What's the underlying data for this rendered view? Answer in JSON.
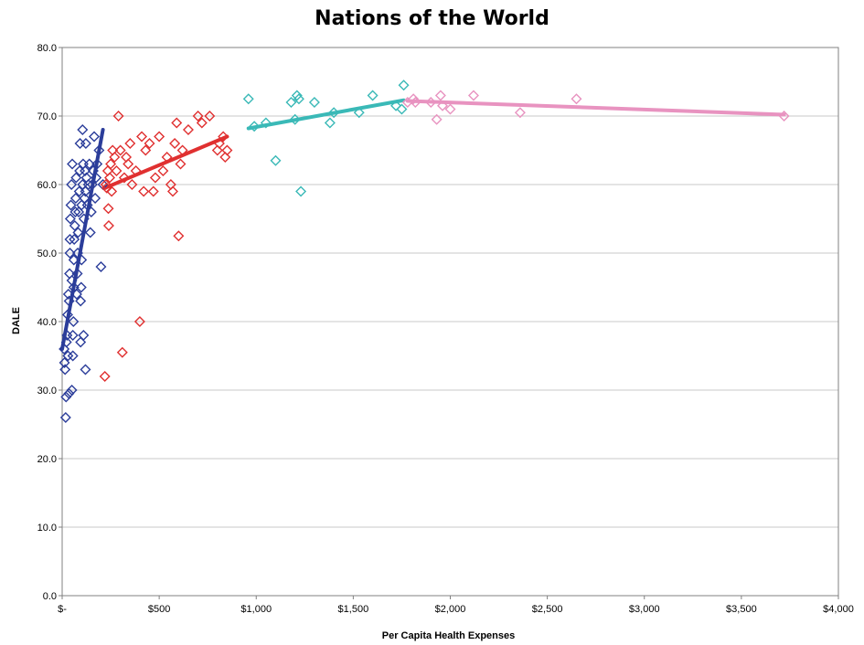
{
  "chart_data": {
    "type": "scatter",
    "title": "Nations of the World",
    "xlabel": "Per Capita Health Expenses",
    "ylabel": "DALE",
    "xlim": [
      0,
      4000
    ],
    "ylim": [
      0,
      80
    ],
    "x_ticks": [
      0,
      500,
      1000,
      1500,
      2000,
      2500,
      3000,
      3500,
      4000
    ],
    "x_tick_labels": [
      "$-",
      "$500",
      "$1,000",
      "$1,500",
      "$2,000",
      "$2,500",
      "$3,000",
      "$3,500",
      "$4,000"
    ],
    "y_ticks": [
      0,
      10,
      20,
      30,
      40,
      50,
      60,
      70,
      80
    ],
    "y_tick_labels": [
      "0.0",
      "10.0",
      "20.0",
      "30.0",
      "40.0",
      "50.0",
      "60.0",
      "70.0",
      "80.0"
    ],
    "grid": "horizontal",
    "legend": "none",
    "series": [
      {
        "color": "#2b3d9a",
        "marker": "diamond",
        "points": [
          [
            10,
            36
          ],
          [
            12,
            34
          ],
          [
            15,
            33
          ],
          [
            18,
            26
          ],
          [
            20,
            29
          ],
          [
            22,
            37
          ],
          [
            25,
            38
          ],
          [
            28,
            41
          ],
          [
            30,
            35
          ],
          [
            32,
            44
          ],
          [
            35,
            29.5
          ],
          [
            36,
            43
          ],
          [
            38,
            47
          ],
          [
            40,
            50
          ],
          [
            40,
            52
          ],
          [
            42,
            55
          ],
          [
            45,
            57
          ],
          [
            48,
            60
          ],
          [
            50,
            46
          ],
          [
            50,
            30
          ],
          [
            52,
            63
          ],
          [
            55,
            35
          ],
          [
            55,
            38
          ],
          [
            58,
            40
          ],
          [
            60,
            45
          ],
          [
            60,
            49
          ],
          [
            62,
            52
          ],
          [
            65,
            54
          ],
          [
            68,
            56
          ],
          [
            70,
            58
          ],
          [
            72,
            61
          ],
          [
            75,
            44
          ],
          [
            78,
            47
          ],
          [
            80,
            50
          ],
          [
            82,
            53
          ],
          [
            85,
            56
          ],
          [
            88,
            59
          ],
          [
            90,
            62
          ],
          [
            92,
            66
          ],
          [
            95,
            37
          ],
          [
            95,
            43
          ],
          [
            98,
            45
          ],
          [
            100,
            49
          ],
          [
            100,
            57
          ],
          [
            105,
            60
          ],
          [
            105,
            68
          ],
          [
            108,
            63
          ],
          [
            110,
            38
          ],
          [
            112,
            55
          ],
          [
            115,
            58
          ],
          [
            118,
            62
          ],
          [
            120,
            33
          ],
          [
            120,
            59
          ],
          [
            122,
            66
          ],
          [
            125,
            61
          ],
          [
            130,
            57
          ],
          [
            135,
            60
          ],
          [
            140,
            63
          ],
          [
            145,
            53
          ],
          [
            150,
            56
          ],
          [
            155,
            60
          ],
          [
            160,
            62
          ],
          [
            165,
            67
          ],
          [
            170,
            58
          ],
          [
            175,
            61
          ],
          [
            180,
            63
          ],
          [
            190,
            65
          ],
          [
            200,
            48
          ],
          [
            210,
            60
          ]
        ],
        "fit_line": [
          [
            0,
            36
          ],
          [
            210,
            68
          ]
        ]
      },
      {
        "color": "#e03030",
        "marker": "diamond",
        "points": [
          [
            220,
            32
          ],
          [
            225,
            60
          ],
          [
            230,
            59.5
          ],
          [
            235,
            62
          ],
          [
            238,
            56.5
          ],
          [
            240,
            54
          ],
          [
            245,
            61
          ],
          [
            250,
            63
          ],
          [
            255,
            59
          ],
          [
            260,
            65
          ],
          [
            270,
            64
          ],
          [
            280,
            62
          ],
          [
            290,
            70
          ],
          [
            300,
            65
          ],
          [
            310,
            35.5
          ],
          [
            320,
            61
          ],
          [
            330,
            64
          ],
          [
            340,
            63
          ],
          [
            350,
            66
          ],
          [
            360,
            60
          ],
          [
            380,
            62
          ],
          [
            400,
            40
          ],
          [
            410,
            67
          ],
          [
            420,
            59
          ],
          [
            430,
            65
          ],
          [
            450,
            66
          ],
          [
            470,
            59
          ],
          [
            480,
            61
          ],
          [
            500,
            67
          ],
          [
            520,
            62
          ],
          [
            540,
            64
          ],
          [
            560,
            60
          ],
          [
            570,
            59
          ],
          [
            580,
            66
          ],
          [
            590,
            69
          ],
          [
            600,
            52.5
          ],
          [
            610,
            63
          ],
          [
            620,
            65
          ],
          [
            650,
            68
          ],
          [
            700,
            70
          ],
          [
            720,
            69
          ],
          [
            760,
            70
          ],
          [
            800,
            65
          ],
          [
            810,
            66
          ],
          [
            830,
            67
          ],
          [
            840,
            64
          ],
          [
            850,
            65
          ]
        ],
        "fit_line": [
          [
            220,
            59.5
          ],
          [
            850,
            67
          ]
        ]
      },
      {
        "color": "#3ab9b7",
        "marker": "diamond",
        "points": [
          [
            960,
            72.5
          ],
          [
            990,
            68.5
          ],
          [
            1050,
            69
          ],
          [
            1100,
            63.5
          ],
          [
            1180,
            72
          ],
          [
            1200,
            69.5
          ],
          [
            1210,
            73
          ],
          [
            1220,
            72.5
          ],
          [
            1230,
            59
          ],
          [
            1300,
            72
          ],
          [
            1380,
            69
          ],
          [
            1400,
            70.5
          ],
          [
            1530,
            70.5
          ],
          [
            1600,
            73
          ],
          [
            1720,
            71.5
          ],
          [
            1750,
            71
          ],
          [
            1760,
            74.5
          ]
        ],
        "fit_line": [
          [
            960,
            68.2
          ],
          [
            1760,
            72.3
          ]
        ]
      },
      {
        "color": "#e893c0",
        "marker": "diamond",
        "points": [
          [
            1780,
            72
          ],
          [
            1810,
            72.5
          ],
          [
            1820,
            72
          ],
          [
            1900,
            72
          ],
          [
            1930,
            69.5
          ],
          [
            1950,
            73
          ],
          [
            1960,
            71.5
          ],
          [
            2000,
            71
          ],
          [
            2120,
            73
          ],
          [
            2360,
            70.5
          ],
          [
            2650,
            72.5
          ],
          [
            3720,
            70
          ]
        ],
        "fit_line": [
          [
            1780,
            72.2
          ],
          [
            3720,
            70.2
          ]
        ]
      }
    ]
  }
}
